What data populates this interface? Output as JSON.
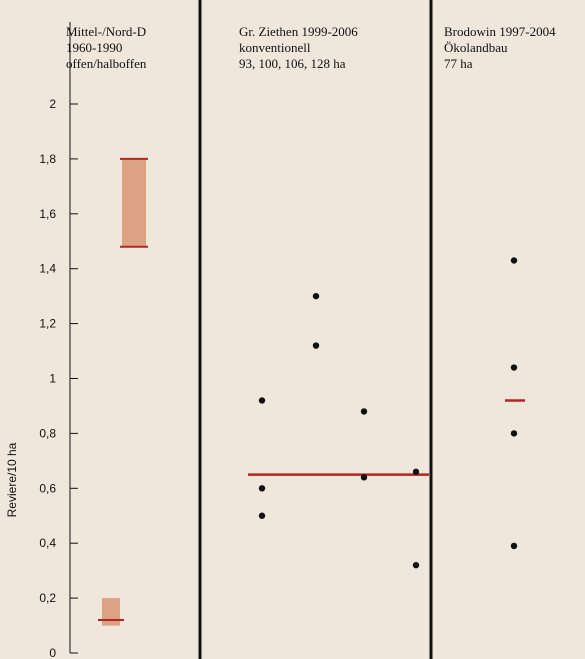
{
  "chart_data": {
    "type": "scatter",
    "ylabel": "Reviere/10 ha",
    "ylim": [
      0,
      2
    ],
    "yticks": [
      "0",
      "0,2",
      "0,4",
      "0,6",
      "0,8",
      "1",
      "1,2",
      "1,4",
      "1,6",
      "1,8",
      "2"
    ],
    "grid": false,
    "panels": [
      {
        "header": [
          "Mittel-/Nord-D",
          "1960-1990",
          "offen/halboffen"
        ],
        "range_bars": [
          {
            "low": 1.48,
            "high": 1.8,
            "median": 1.48
          },
          {
            "low": 0.1,
            "high": 0.2,
            "median": 0.12
          }
        ],
        "points": [],
        "mean_line": null
      },
      {
        "header": [
          "Gr. Ziethen 1999-2006",
          "konventionell",
          "93, 100, 106, 128 ha"
        ],
        "range_bars": [],
        "points": [
          {
            "x": 1,
            "y": 0.6
          },
          {
            "x": 1,
            "y": 0.5
          },
          {
            "x": 1,
            "y": 0.92
          },
          {
            "x": 2,
            "y": 1.3
          },
          {
            "x": 2,
            "y": 1.12
          },
          {
            "x": 3,
            "y": 0.88
          },
          {
            "x": 3,
            "y": 0.64
          },
          {
            "x": 4,
            "y": 0.66
          },
          {
            "x": 4,
            "y": 0.32
          }
        ],
        "mean_line": 0.65
      },
      {
        "header": [
          "Brodowin 1997-2004",
          "Ökolandbau",
          "77 ha"
        ],
        "range_bars": [],
        "points": [
          {
            "x": 1,
            "y": 1.43
          },
          {
            "x": 1,
            "y": 1.04
          },
          {
            "x": 1,
            "y": 0.8
          },
          {
            "x": 1,
            "y": 0.39
          }
        ],
        "mean_line": 0.92
      }
    ]
  },
  "colors": {
    "range_bar": "#d99a7a",
    "median_line": "#b8251e",
    "axis": "#111111",
    "background": "#efe6dc"
  }
}
